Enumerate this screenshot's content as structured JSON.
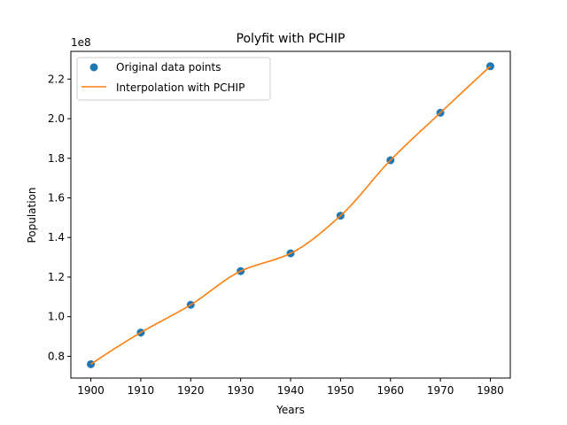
{
  "chart_data": {
    "type": "line",
    "title": "Polyfit with PCHIP",
    "xlabel": "Years",
    "ylabel": "Population",
    "y_offset_label": "1e8",
    "xlim": [
      1896,
      1984
    ],
    "ylim": [
      0.69,
      2.34
    ],
    "x_ticks": [
      1900,
      1910,
      1920,
      1930,
      1940,
      1950,
      1960,
      1970,
      1980
    ],
    "x_tick_labels": [
      "1900",
      "1910",
      "1920",
      "1930",
      "1940",
      "1950",
      "1960",
      "1970",
      "1980"
    ],
    "y_ticks": [
      0.8,
      1.0,
      1.2,
      1.4,
      1.6,
      1.8,
      2.0,
      2.2
    ],
    "y_tick_labels": [
      "0.8",
      "1.0",
      "1.2",
      "1.4",
      "1.6",
      "1.8",
      "2.0",
      "2.2"
    ],
    "grid": false,
    "legend_position": "upper-left",
    "series": [
      {
        "name": "Original data points",
        "kind": "scatter",
        "color": "#1f77b4",
        "x": [
          1900,
          1910,
          1920,
          1930,
          1940,
          1950,
          1960,
          1970,
          1980
        ],
        "y": [
          0.76,
          0.92,
          1.06,
          1.23,
          1.32,
          1.51,
          1.79,
          2.03,
          2.265
        ]
      },
      {
        "name": "Interpolation with PCHIP",
        "kind": "line",
        "color": "#ff7f0e",
        "x": [
          1900,
          1910,
          1920,
          1930,
          1940,
          1950,
          1960,
          1970,
          1980
        ],
        "y": [
          0.76,
          0.92,
          1.06,
          1.23,
          1.32,
          1.51,
          1.79,
          2.03,
          2.265
        ]
      }
    ]
  }
}
